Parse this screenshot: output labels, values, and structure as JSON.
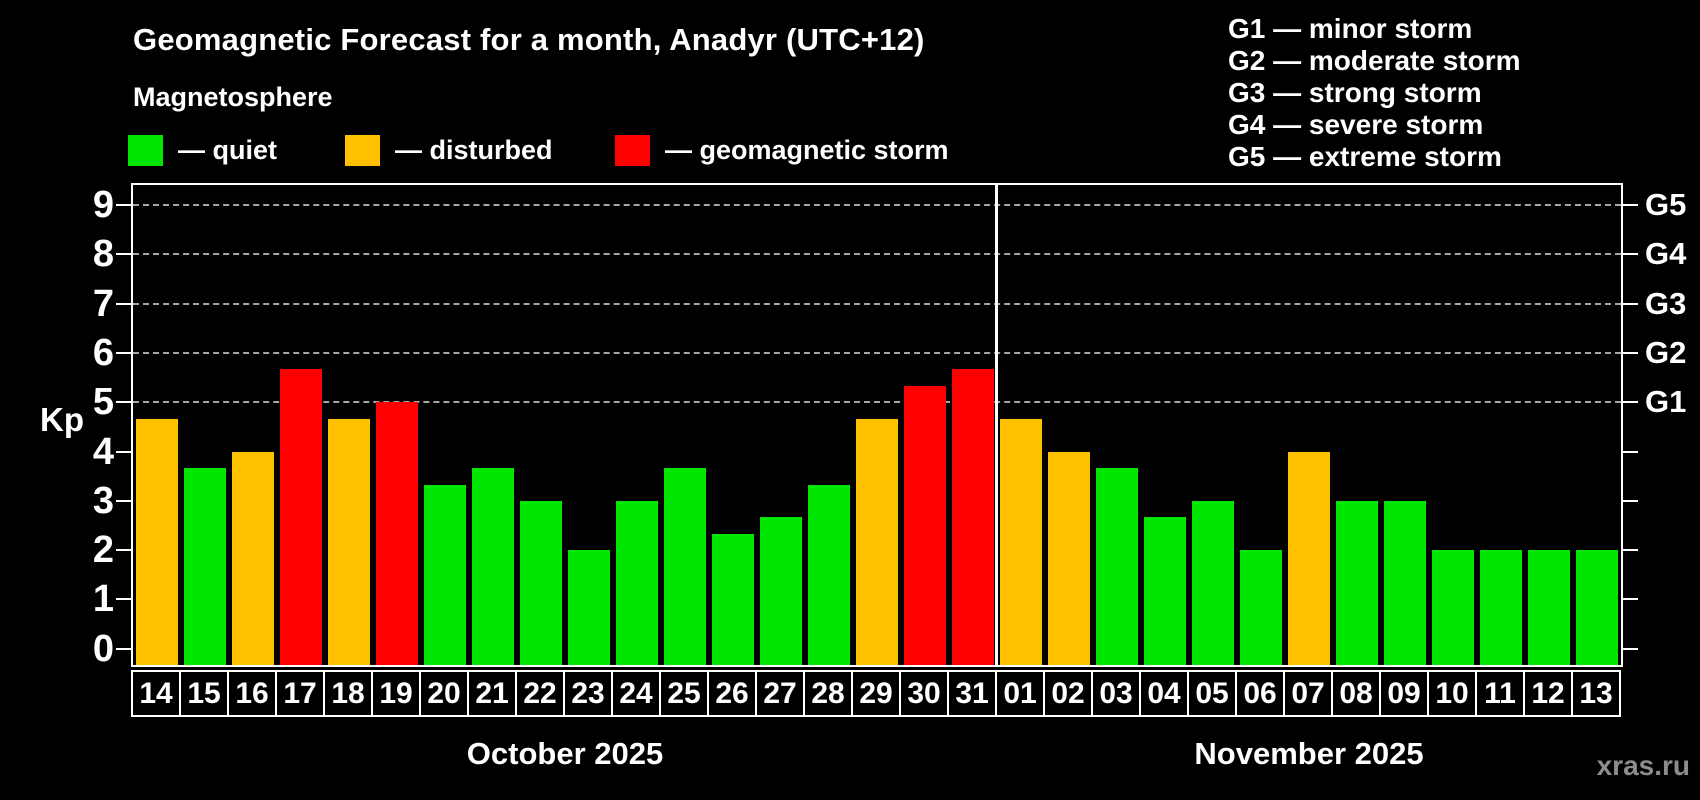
{
  "title": "Geomagnetic Forecast for a month, Anadyr (UTC+12)",
  "subtitle": "Magnetosphere",
  "legend": {
    "items": [
      {
        "key": "quiet",
        "label": "— quiet",
        "color": "#00e600"
      },
      {
        "key": "disturbed",
        "label": "— disturbed",
        "color": "#ffc000"
      },
      {
        "key": "storm",
        "label": "— geomagnetic storm",
        "color": "#ff0000"
      }
    ]
  },
  "g_legend": [
    "G1 — minor storm",
    "G2 — moderate storm",
    "G3 — strong storm",
    "G4 — severe storm",
    "G5 — extreme storm"
  ],
  "watermark": "xras.ru",
  "chart_data": {
    "type": "bar",
    "ylabel": "Kp",
    "ylim": [
      -0.33,
      9.41
    ],
    "y_ticks": [
      "0",
      "1",
      "2",
      "3",
      "4",
      "5",
      "6",
      "7",
      "8",
      "9"
    ],
    "right_axis": [
      {
        "kp": 5,
        "label": "G1"
      },
      {
        "kp": 6,
        "label": "G2"
      },
      {
        "kp": 7,
        "label": "G3"
      },
      {
        "kp": 8,
        "label": "G4"
      },
      {
        "kp": 9,
        "label": "G5"
      }
    ],
    "grid_dashed_at": [
      5,
      6,
      7,
      8,
      9
    ],
    "status_colors": {
      "quiet": "#00e600",
      "disturbed": "#ffc000",
      "storm": "#ff0000"
    },
    "months": [
      {
        "label": "October 2025",
        "start": 0,
        "count": 18
      },
      {
        "label": "November 2025",
        "start": 18,
        "count": 13
      }
    ],
    "categories": [
      "14",
      "15",
      "16",
      "17",
      "18",
      "19",
      "20",
      "21",
      "22",
      "23",
      "24",
      "25",
      "26",
      "27",
      "28",
      "29",
      "30",
      "31",
      "01",
      "02",
      "03",
      "04",
      "05",
      "06",
      "07",
      "08",
      "09",
      "10",
      "11",
      "12",
      "13"
    ],
    "values": [
      4.67,
      3.67,
      4.0,
      5.67,
      4.67,
      5.0,
      3.33,
      3.67,
      3.0,
      2.0,
      3.0,
      3.67,
      2.33,
      2.67,
      3.33,
      4.67,
      5.33,
      5.67,
      4.67,
      4.0,
      3.67,
      2.67,
      3.0,
      2.0,
      4.0,
      3.0,
      3.0,
      2.0,
      2.0,
      2.0,
      2.0
    ],
    "statuses": [
      "disturbed",
      "quiet",
      "disturbed",
      "storm",
      "disturbed",
      "storm",
      "quiet",
      "quiet",
      "quiet",
      "quiet",
      "quiet",
      "quiet",
      "quiet",
      "quiet",
      "quiet",
      "disturbed",
      "storm",
      "storm",
      "disturbed",
      "disturbed",
      "quiet",
      "quiet",
      "quiet",
      "quiet",
      "disturbed",
      "quiet",
      "quiet",
      "quiet",
      "quiet",
      "quiet",
      "quiet"
    ]
  }
}
